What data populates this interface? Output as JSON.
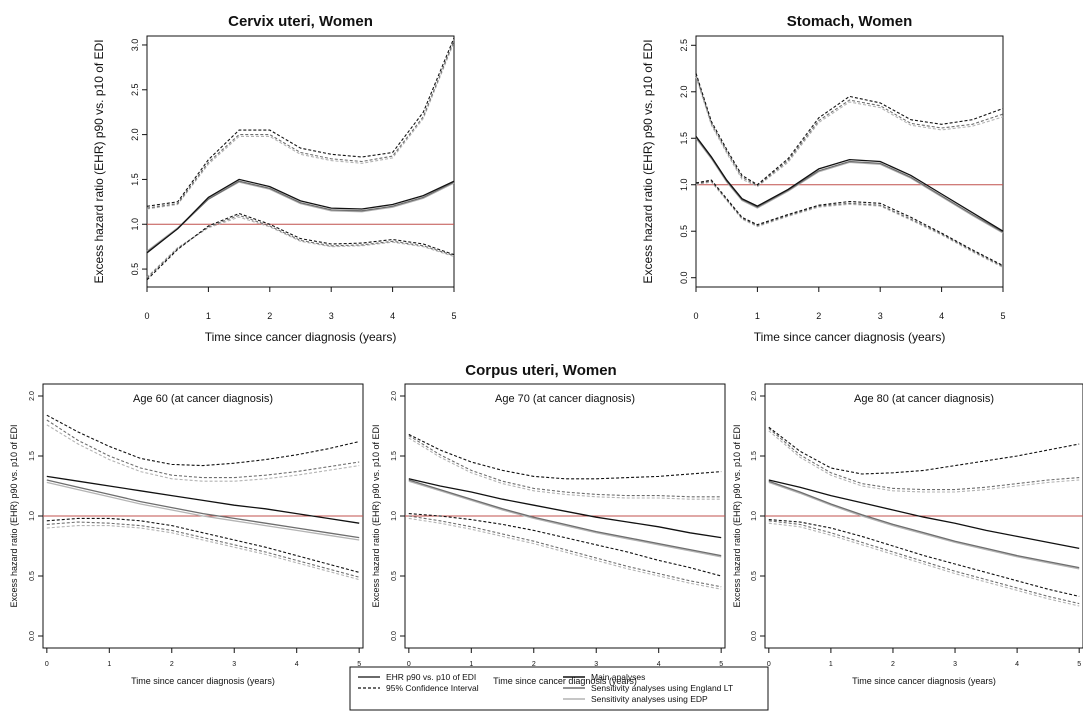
{
  "figure": {
    "corpus_title": "Corpus uteri, Women"
  },
  "colors": {
    "main": "#111111",
    "england_lt": "#6e6e6e",
    "edp": "#b4b4b4",
    "reference": "#c0504d"
  },
  "legend": {
    "col1": [
      {
        "label": "EHR p90 vs. p10 of EDI",
        "style": "solid"
      },
      {
        "label": "95% Confidence Interval",
        "style": "dashed"
      }
    ],
    "col2": [
      {
        "label": "Main analyses",
        "color_key": "main"
      },
      {
        "label": "Sensitivity analyses using England LT",
        "color_key": "england_lt"
      },
      {
        "label": "Sensitivity analyses using EDP",
        "color_key": "edp"
      }
    ]
  },
  "chart_data": [
    {
      "id": "cervix",
      "type": "line",
      "title": "Cervix uteri, Women",
      "subtitle": "",
      "xlabel": "Time since cancer diagnosis (years)",
      "ylabel": "Excess hazard ratio (EHR) p90 vs. p10 of EDI",
      "xlim": [
        0,
        5
      ],
      "ylim": [
        0.3,
        3.1
      ],
      "xticks": [
        0,
        1,
        2,
        3,
        4,
        5
      ],
      "yticks": [
        0.5,
        1.0,
        1.5,
        2.0,
        2.5,
        3.0
      ],
      "ytick_labels": [
        "0.5",
        "1.0",
        "1.5",
        "2.0",
        "2.5",
        "3.0"
      ],
      "reference_line": 1.0,
      "x": [
        0,
        0.5,
        1,
        1.5,
        2,
        2.5,
        3,
        3.5,
        4,
        4.5,
        5
      ],
      "series": [
        {
          "name": "Main analyses",
          "color_key": "main",
          "est": [
            0.68,
            0.95,
            1.3,
            1.5,
            1.42,
            1.26,
            1.18,
            1.17,
            1.22,
            1.32,
            1.48
          ],
          "lower": [
            0.38,
            0.72,
            0.98,
            1.12,
            1.0,
            0.84,
            0.78,
            0.79,
            0.83,
            0.78,
            0.66
          ],
          "upper": [
            1.2,
            1.25,
            1.72,
            2.05,
            2.05,
            1.85,
            1.78,
            1.75,
            1.8,
            2.25,
            3.08
          ]
        },
        {
          "name": "Sensitivity analyses using England LT",
          "color_key": "england_lt",
          "est": [
            0.69,
            0.95,
            1.28,
            1.48,
            1.4,
            1.24,
            1.16,
            1.15,
            1.2,
            1.3,
            1.47
          ],
          "lower": [
            0.4,
            0.73,
            0.97,
            1.1,
            0.98,
            0.82,
            0.76,
            0.77,
            0.81,
            0.76,
            0.65
          ],
          "upper": [
            1.18,
            1.23,
            1.69,
            2.0,
            2.0,
            1.8,
            1.73,
            1.7,
            1.76,
            2.2,
            3.05
          ]
        },
        {
          "name": "Sensitivity analyses using EDP",
          "color_key": "edp",
          "est": [
            0.7,
            0.96,
            1.28,
            1.47,
            1.39,
            1.23,
            1.15,
            1.14,
            1.19,
            1.29,
            1.46
          ],
          "lower": [
            0.41,
            0.74,
            0.96,
            1.08,
            0.97,
            0.81,
            0.75,
            0.76,
            0.8,
            0.75,
            0.64
          ],
          "upper": [
            1.17,
            1.22,
            1.67,
            1.98,
            1.98,
            1.78,
            1.71,
            1.68,
            1.74,
            2.18,
            3.03
          ]
        }
      ]
    },
    {
      "id": "stomach",
      "type": "line",
      "title": "Stomach, Women",
      "subtitle": "",
      "xlabel": "Time since cancer diagnosis (years)",
      "ylabel": "Excess hazard ratio (EHR) p90 vs. p10 of EDI",
      "xlim": [
        0,
        5
      ],
      "ylim": [
        -0.1,
        2.6
      ],
      "xticks": [
        0,
        1,
        2,
        3,
        4,
        5
      ],
      "yticks": [
        0,
        0.5,
        1.0,
        1.5,
        2.0,
        2.5
      ],
      "ytick_labels": [
        "0.0",
        "0.5",
        "1.0",
        "1.5",
        "2.0",
        "2.5"
      ],
      "reference_line": 1.0,
      "x": [
        0,
        0.25,
        0.5,
        0.75,
        1,
        1.5,
        2,
        2.5,
        3,
        3.5,
        4,
        4.5,
        5
      ],
      "series": [
        {
          "name": "Main analyses",
          "color_key": "main",
          "est": [
            1.52,
            1.3,
            1.05,
            0.85,
            0.77,
            0.95,
            1.17,
            1.27,
            1.25,
            1.1,
            0.9,
            0.7,
            0.5
          ],
          "lower": [
            1.02,
            1.05,
            0.85,
            0.65,
            0.57,
            0.68,
            0.78,
            0.82,
            0.8,
            0.65,
            0.48,
            0.3,
            0.13
          ],
          "upper": [
            2.2,
            1.68,
            1.38,
            1.1,
            1.0,
            1.28,
            1.72,
            1.95,
            1.88,
            1.7,
            1.65,
            1.7,
            1.82
          ]
        },
        {
          "name": "Sensitivity analyses using England LT",
          "color_key": "england_lt",
          "est": [
            1.51,
            1.29,
            1.04,
            0.84,
            0.76,
            0.94,
            1.15,
            1.25,
            1.23,
            1.08,
            0.88,
            0.68,
            0.49
          ],
          "lower": [
            1.01,
            1.04,
            0.84,
            0.64,
            0.56,
            0.67,
            0.77,
            0.8,
            0.78,
            0.63,
            0.47,
            0.29,
            0.12
          ],
          "upper": [
            2.18,
            1.66,
            1.36,
            1.08,
            0.99,
            1.26,
            1.69,
            1.91,
            1.85,
            1.66,
            1.61,
            1.65,
            1.76
          ]
        },
        {
          "name": "Sensitivity analyses using EDP",
          "color_key": "edp",
          "est": [
            1.5,
            1.28,
            1.03,
            0.83,
            0.75,
            0.93,
            1.14,
            1.24,
            1.22,
            1.07,
            0.87,
            0.67,
            0.48
          ],
          "lower": [
            1.0,
            1.03,
            0.83,
            0.63,
            0.55,
            0.66,
            0.76,
            0.79,
            0.77,
            0.62,
            0.46,
            0.28,
            0.11
          ],
          "upper": [
            2.16,
            1.64,
            1.34,
            1.06,
            0.98,
            1.24,
            1.67,
            1.89,
            1.83,
            1.64,
            1.59,
            1.63,
            1.73
          ]
        }
      ]
    },
    {
      "id": "age60",
      "type": "line",
      "title": "",
      "subtitle": "Age 60 (at cancer diagnosis)",
      "xlabel": "Time since cancer diagnosis (years)",
      "ylabel": "Excess hazard ratio (EHR) p90 vs. p10 of EDI",
      "xlim": [
        0,
        5
      ],
      "ylim": [
        -0.1,
        2.1
      ],
      "xticks": [
        0,
        1,
        2,
        3,
        4,
        5
      ],
      "yticks": [
        0,
        0.5,
        1.0,
        1.5,
        2.0
      ],
      "ytick_labels": [
        "0.0",
        "0.5",
        "1.0",
        "1.5",
        "2.0"
      ],
      "reference_line": 1.0,
      "x": [
        0,
        0.5,
        1,
        1.5,
        2,
        2.5,
        3,
        3.5,
        4,
        4.5,
        5
      ],
      "series": [
        {
          "name": "Main analyses",
          "color_key": "main",
          "est": [
            1.33,
            1.29,
            1.25,
            1.21,
            1.17,
            1.13,
            1.09,
            1.06,
            1.02,
            0.98,
            0.94
          ],
          "lower": [
            0.96,
            0.98,
            0.98,
            0.96,
            0.92,
            0.86,
            0.8,
            0.74,
            0.67,
            0.6,
            0.53
          ],
          "upper": [
            1.84,
            1.7,
            1.58,
            1.48,
            1.43,
            1.42,
            1.44,
            1.47,
            1.51,
            1.56,
            1.62
          ]
        },
        {
          "name": "Sensitivity analyses using England LT",
          "color_key": "england_lt",
          "est": [
            1.3,
            1.24,
            1.18,
            1.12,
            1.07,
            1.02,
            0.98,
            0.94,
            0.9,
            0.86,
            0.82
          ],
          "lower": [
            0.93,
            0.95,
            0.94,
            0.92,
            0.88,
            0.82,
            0.76,
            0.7,
            0.63,
            0.56,
            0.49
          ],
          "upper": [
            1.8,
            1.63,
            1.5,
            1.4,
            1.34,
            1.32,
            1.32,
            1.34,
            1.37,
            1.41,
            1.45
          ]
        },
        {
          "name": "Sensitivity analyses using EDP",
          "color_key": "edp",
          "est": [
            1.28,
            1.22,
            1.16,
            1.1,
            1.05,
            1.0,
            0.96,
            0.92,
            0.88,
            0.84,
            0.8
          ],
          "lower": [
            0.9,
            0.92,
            0.92,
            0.9,
            0.86,
            0.8,
            0.74,
            0.68,
            0.61,
            0.54,
            0.47
          ],
          "upper": [
            1.76,
            1.6,
            1.47,
            1.37,
            1.31,
            1.29,
            1.29,
            1.31,
            1.34,
            1.38,
            1.42
          ]
        }
      ]
    },
    {
      "id": "age70",
      "type": "line",
      "title": "",
      "subtitle": "Age 70 (at cancer diagnosis)",
      "xlabel": "Time since cancer diagnosis (years)",
      "ylabel": "Excess hazard ratio (EHR) p90 vs. p10 of EDI",
      "xlim": [
        0,
        5
      ],
      "ylim": [
        -0.1,
        2.1
      ],
      "xticks": [
        0,
        1,
        2,
        3,
        4,
        5
      ],
      "yticks": [
        0,
        0.5,
        1.0,
        1.5,
        2.0
      ],
      "ytick_labels": [
        "0.0",
        "0.5",
        "1.0",
        "1.5",
        "2.0"
      ],
      "reference_line": 1.0,
      "x": [
        0,
        0.5,
        1,
        1.5,
        2,
        2.5,
        3,
        3.5,
        4,
        4.5,
        5
      ],
      "series": [
        {
          "name": "Main analyses",
          "color_key": "main",
          "est": [
            1.31,
            1.25,
            1.2,
            1.14,
            1.09,
            1.04,
            0.99,
            0.95,
            0.91,
            0.86,
            0.82
          ],
          "lower": [
            1.02,
            1.0,
            0.97,
            0.93,
            0.88,
            0.82,
            0.76,
            0.7,
            0.63,
            0.57,
            0.5
          ],
          "upper": [
            1.68,
            1.55,
            1.45,
            1.38,
            1.33,
            1.31,
            1.31,
            1.32,
            1.33,
            1.35,
            1.37
          ]
        },
        {
          "name": "Sensitivity analyses using England LT",
          "color_key": "england_lt",
          "est": [
            1.3,
            1.22,
            1.14,
            1.06,
            0.99,
            0.93,
            0.87,
            0.82,
            0.77,
            0.72,
            0.67
          ],
          "lower": [
            1.0,
            0.96,
            0.91,
            0.85,
            0.79,
            0.72,
            0.65,
            0.58,
            0.52,
            0.46,
            0.41
          ],
          "upper": [
            1.67,
            1.51,
            1.38,
            1.29,
            1.23,
            1.2,
            1.18,
            1.17,
            1.17,
            1.16,
            1.16
          ]
        },
        {
          "name": "Sensitivity analyses using EDP",
          "color_key": "edp",
          "est": [
            1.29,
            1.21,
            1.13,
            1.05,
            0.98,
            0.92,
            0.86,
            0.81,
            0.76,
            0.71,
            0.66
          ],
          "lower": [
            0.98,
            0.94,
            0.89,
            0.83,
            0.77,
            0.7,
            0.63,
            0.56,
            0.5,
            0.44,
            0.39
          ],
          "upper": [
            1.65,
            1.49,
            1.36,
            1.27,
            1.21,
            1.18,
            1.16,
            1.15,
            1.15,
            1.14,
            1.14
          ]
        }
      ]
    },
    {
      "id": "age80",
      "type": "line",
      "title": "",
      "subtitle": "Age 80 (at cancer diagnosis)",
      "xlabel": "Time since cancer diagnosis (years)",
      "ylabel": "Excess hazard ratio (EHR) p90 vs. p10 of EDI",
      "xlim": [
        0,
        5
      ],
      "ylim": [
        -0.1,
        2.1
      ],
      "xticks": [
        0,
        1,
        2,
        3,
        4,
        5
      ],
      "yticks": [
        0,
        0.5,
        1.0,
        1.5,
        2.0
      ],
      "ytick_labels": [
        "0.0",
        "0.5",
        "1.0",
        "1.5",
        "2.0"
      ],
      "reference_line": 1.0,
      "x": [
        0,
        0.5,
        1,
        1.5,
        2,
        2.5,
        3,
        3.5,
        4,
        4.5,
        5
      ],
      "series": [
        {
          "name": "Main analyses",
          "color_key": "main",
          "est": [
            1.3,
            1.24,
            1.17,
            1.11,
            1.05,
            0.99,
            0.94,
            0.88,
            0.83,
            0.78,
            0.73
          ],
          "lower": [
            0.97,
            0.95,
            0.9,
            0.83,
            0.75,
            0.67,
            0.6,
            0.53,
            0.46,
            0.39,
            0.33
          ],
          "upper": [
            1.74,
            1.54,
            1.4,
            1.35,
            1.36,
            1.38,
            1.42,
            1.46,
            1.5,
            1.55,
            1.6
          ]
        },
        {
          "name": "Sensitivity analyses using England LT",
          "color_key": "england_lt",
          "est": [
            1.29,
            1.2,
            1.1,
            1.01,
            0.93,
            0.86,
            0.79,
            0.73,
            0.67,
            0.62,
            0.57
          ],
          "lower": [
            0.96,
            0.93,
            0.86,
            0.78,
            0.7,
            0.62,
            0.54,
            0.47,
            0.4,
            0.33,
            0.27
          ],
          "upper": [
            1.73,
            1.51,
            1.36,
            1.27,
            1.23,
            1.22,
            1.22,
            1.24,
            1.27,
            1.3,
            1.32
          ]
        },
        {
          "name": "Sensitivity analyses using EDP",
          "color_key": "edp",
          "est": [
            1.28,
            1.19,
            1.09,
            1.0,
            0.92,
            0.85,
            0.78,
            0.72,
            0.66,
            0.61,
            0.56
          ],
          "lower": [
            0.94,
            0.91,
            0.84,
            0.76,
            0.68,
            0.6,
            0.52,
            0.45,
            0.38,
            0.31,
            0.25
          ],
          "upper": [
            1.71,
            1.49,
            1.34,
            1.25,
            1.21,
            1.2,
            1.2,
            1.22,
            1.25,
            1.28,
            1.3
          ]
        }
      ]
    }
  ]
}
